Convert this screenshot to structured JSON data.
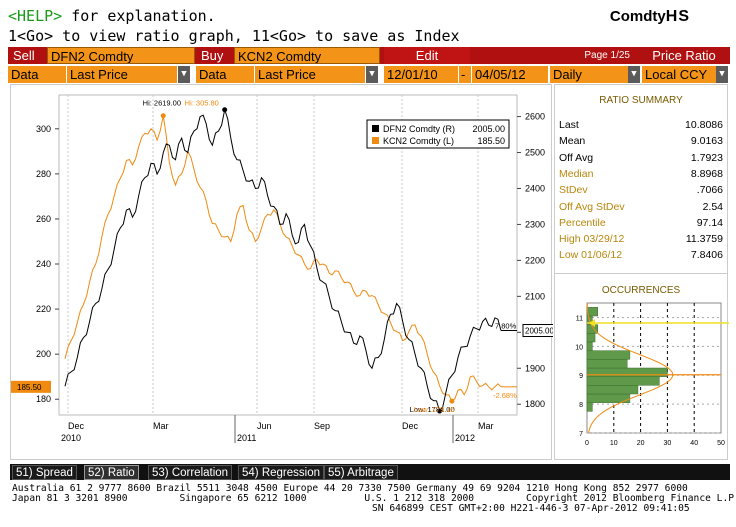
{
  "header": {
    "help_key": "<HELP>",
    "help_text": " for explanation.",
    "go_line": "1<Go> to view ratio graph, 11<Go> to save as Index",
    "brand_prefix": "Comdty",
    "brand_code": "HS"
  },
  "toolbar": {
    "sell_label": "Sell",
    "sell_ticker": "DFN2 Comdty",
    "buy_label": "Buy",
    "buy_ticker": "KCN2 Comdty",
    "edit_label": "Edit",
    "page_label": "Page 1/25",
    "price_ratio_label": "Price Ratio",
    "data_label_1": "Data",
    "data_field_1": "Last Price",
    "data_label_2": "Data",
    "data_field_2": "Last Price",
    "start_date": "12/01/10",
    "end_date": "04/05/12",
    "period": "Daily",
    "currency": "Local CCY",
    "dropdown_glyph": "▼",
    "date_separator": "-"
  },
  "colors": {
    "orange": "#f39318",
    "red_bar": "#b01010",
    "series_black": "#000000",
    "series_orange": "#f08a10",
    "hist_green": "#5e9a4a",
    "yellow_line": "#f0e020"
  },
  "chart_data": [
    {
      "type": "line",
      "legend": [
        {
          "name": "DFN2 Comdty (R)",
          "value": "2005.00"
        },
        {
          "name": "KCN2 Comdty (L)",
          "value": "185.50"
        }
      ],
      "x_tick_labels": [
        "Dec",
        "Mar",
        "Jun",
        "Sep",
        "Dec",
        "Mar"
      ],
      "x_year_labels": [
        "2010",
        "2011",
        "2012"
      ],
      "left_axis": {
        "ticks": [
          180,
          200,
          220,
          240,
          260,
          280,
          300
        ],
        "ylim": [
          173,
          315
        ]
      },
      "right_axis": {
        "ticks": [
          1800,
          1900,
          2000,
          2100,
          2200,
          2300,
          2400,
          2500,
          2600
        ],
        "ylim": [
          1770,
          2660
        ]
      },
      "annotations": {
        "high_black": "Hi: 2619.00",
        "high_orange": "Hi: 305.80",
        "low_black": "Low: 1781.00",
        "low_orange": "Low: 179.15",
        "pct_black": "7.80%",
        "pct_orange": "-2.68%",
        "last_black_tag": "2005.00",
        "last_orange_tag": "185.50"
      },
      "series": [
        {
          "name": "DFN2 Comdty (R)",
          "axis": "right",
          "values": [
            1850,
            1890,
            1930,
            1985,
            2030,
            2080,
            2120,
            2175,
            2230,
            2290,
            2340,
            2320,
            2380,
            2430,
            2470,
            2440,
            2500,
            2520,
            2480,
            2540,
            2500,
            2560,
            2600,
            2580,
            2520,
            2560,
            2619,
            2540,
            2480,
            2450,
            2420,
            2400,
            2430,
            2380,
            2350,
            2300,
            2330,
            2270,
            2250,
            2300,
            2240,
            2180,
            2140,
            2100,
            2060,
            2030,
            2000,
            1970,
            1990,
            1950,
            1900,
            1930,
            1980,
            2050,
            2080,
            2030,
            1980,
            1940,
            1900,
            1850,
            1810,
            1781,
            1830,
            1880,
            1930,
            1960,
            1990,
            2010,
            2030,
            2020,
            2040,
            2005
          ]
        },
        {
          "name": "KCN2 Comdty (L)",
          "axis": "left",
          "values": [
            198,
            206,
            214,
            222,
            232,
            240,
            252,
            262,
            270,
            278,
            286,
            284,
            292,
            298,
            300,
            295,
            305.8,
            285,
            275,
            280,
            290,
            282,
            274,
            268,
            258,
            255,
            252,
            250,
            262,
            266,
            255,
            250,
            256,
            262,
            264,
            258,
            252,
            248,
            244,
            240,
            238,
            242,
            240,
            236,
            237,
            234,
            232,
            228,
            226,
            228,
            226,
            222,
            218,
            214,
            210,
            206,
            210,
            213,
            208,
            200,
            192,
            186,
            182,
            179.15,
            184,
            182,
            190,
            188,
            186,
            185.5,
            185.5,
            185.5
          ]
        }
      ]
    },
    {
      "type": "bar",
      "title": "OCCURRENCES",
      "orientation": "horizontal",
      "y_ticks": [
        7.0,
        8.0,
        9.0,
        10.0,
        11.0
      ],
      "x_ticks": [
        0,
        10,
        20,
        30,
        40,
        50
      ],
      "ylim": [
        7.0,
        11.5
      ],
      "xlim": [
        0,
        50
      ],
      "bins": [
        7.9,
        8.2,
        8.5,
        8.8,
        9.1,
        9.4,
        9.7,
        10.0,
        10.3,
        10.6,
        10.9,
        11.2
      ],
      "values": [
        2,
        16,
        19,
        27,
        30,
        15,
        16,
        2,
        3,
        4,
        2,
        4
      ]
    }
  ],
  "stats": {
    "title": "RATIO SUMMARY",
    "rows": [
      {
        "label": "Last",
        "value": "10.8086",
        "color": "#000000"
      },
      {
        "label": "Mean",
        "value": "9.0163",
        "color": "#000000"
      },
      {
        "label": "Off Avg",
        "value": "1.7923",
        "color": "#000000"
      },
      {
        "label": "Median",
        "value": "8.8968",
        "color": "#b8860b"
      },
      {
        "label": "StDev",
        "value": ".7066",
        "color": "#b8860b"
      },
      {
        "label": "Off Avg StDev",
        "value": "2.54",
        "color": "#b8860b"
      },
      {
        "label": "Percentile",
        "value": "97.14",
        "color": "#b8860b"
      },
      {
        "label": "High 03/29/12",
        "value": "11.3759",
        "color": "#b8860b"
      },
      {
        "label": "Low 01/06/12",
        "value": "7.8406",
        "color": "#b8860b"
      }
    ]
  },
  "tabs": [
    {
      "label": "51) Spread"
    },
    {
      "label": "52) Ratio"
    },
    {
      "label": "53) Correlation"
    },
    {
      "label": "54) Regression"
    },
    {
      "label": "55) Arbitrage"
    }
  ],
  "footer": {
    "line1": "Australia 61 2 9777 8600 Brazil 5511 3048 4500 Europe 44 20 7330 7500 Germany 49 69 9204 1210 Hong Kong 852 2977 6000",
    "line2": "Japan 81 3 3201 8900         Singapore 65 6212 1000          U.S. 1 212 318 2000         Copyright 2012 Bloomberg Finance L.P.",
    "line3": "SN 646899 CEST GMT+2:00 H221-446-3 07-Apr-2012 09:41:05"
  }
}
